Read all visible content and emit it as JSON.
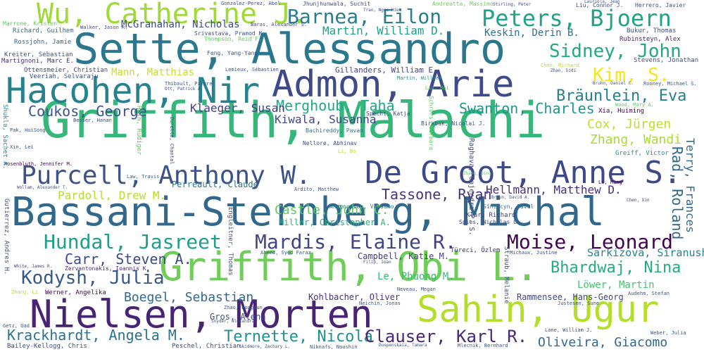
{
  "words": [
    {
      "text": "Griffith, Malachi",
      "color": "#35b779"
    },
    {
      "text": "Bassani-Sternberg, Michal",
      "color": "#31688e"
    },
    {
      "text": "Griffith, Obi L.",
      "color": "#6ece58"
    },
    {
      "text": "Sette, Alessandro",
      "color": "#2a788e"
    },
    {
      "text": "Nielsen, Morten",
      "color": "#482475"
    },
    {
      "text": "Sahin, Ugur",
      "color": "#b5de2b"
    },
    {
      "text": "Hacohen, Nir",
      "color": "#26828e"
    },
    {
      "text": "Admon, Arie",
      "color": "#3e4a89"
    },
    {
      "text": "De Groot, Anne S.",
      "color": "#3e4989"
    },
    {
      "text": "Purcell, Anthony W.",
      "color": "#3b528b"
    },
    {
      "text": "Wu, Catherine J.",
      "color": "#a0da39"
    },
    {
      "text": "Peters, Bjoern",
      "color": "#20a386"
    },
    {
      "text": "Barnea, Eilon",
      "color": "#287d8e"
    },
    {
      "text": "Mardis, Elaine R.",
      "color": "#404387"
    },
    {
      "text": "Hundal, Jasreet",
      "color": "#1f9e89"
    },
    {
      "text": "Moise, Leonard",
      "color": "#440154"
    },
    {
      "text": "Sidney, John",
      "color": "#22a884"
    },
    {
      "text": "Kodysh, Julia",
      "color": "#38598c"
    },
    {
      "text": "Krackhardt, Angela M.",
      "color": "#2c728e"
    },
    {
      "text": "Ternette, Nicola",
      "color": "#21918c"
    },
    {
      "text": "Clauser, Karl R.",
      "color": "#482878"
    },
    {
      "text": "Bhardwaj, Nina",
      "color": "#25ab82"
    },
    {
      "text": "Bräunlein, Eva",
      "color": "#277f8e"
    },
    {
      "text": "Swanton, Charles",
      "color": "#1f968b"
    },
    {
      "text": "Kim, S.",
      "color": "#f4e61e"
    },
    {
      "text": "Coukos, George",
      "color": "#3b528b"
    },
    {
      "text": "Oliveira, Giacomo",
      "color": "#31688e"
    },
    {
      "text": "Carr, Steven A.",
      "color": "#3e4a89"
    },
    {
      "text": "Boegel, Sebastian",
      "color": "#31688e"
    },
    {
      "text": "Tassone, Ryan",
      "color": "#46337e"
    },
    {
      "text": "Hellmann, Matthew D.",
      "color": "#46307e"
    },
    {
      "text": "Sarkizova, Siranush",
      "color": "#26828e"
    },
    {
      "text": "Cox, Jürgen",
      "color": "#c2df23"
    },
    {
      "text": "Zhang, Wandi",
      "color": "#a8db34"
    },
    {
      "text": "Merghoub, Taha",
      "color": "#22a785"
    },
    {
      "text": "Klaeger, Susan",
      "color": "#433e85"
    },
    {
      "text": "Kiwala, Susanna",
      "color": "#3f4788"
    },
    {
      "text": "Pardoll, Drew M.",
      "color": "#b5de2b"
    },
    {
      "text": "Castle, John C.",
      "color": "#5ec962"
    },
    {
      "text": "McGranahan, Nicholas",
      "color": "#3e4989"
    },
    {
      "text": "Martin, William D.",
      "color": "#1fa187"
    },
    {
      "text": "Keskin, Derin B.",
      "color": "#2e6e8e"
    },
    {
      "text": "Mann, Matthias",
      "color": "#c8e020"
    },
    {
      "text": "Gillanders, William E.",
      "color": "#414487"
    },
    {
      "text": "Campbell, Katie M.",
      "color": "#433d84"
    },
    {
      "text": "Le, Phuong M.",
      "color": "#3aba76"
    },
    {
      "text": "Kohlbacher, Oliver",
      "color": "#46317e"
    },
    {
      "text": "Rammensee, Hans-Georg",
      "color": "#3f4889"
    },
    {
      "text": "Löwer, Martin",
      "color": "#4ac16d"
    },
    {
      "text": "Gros, Alena",
      "color": "#3d4d8a"
    },
    {
      "text": "Miller, Christopher A.",
      "color": "#29af7f"
    },
    {
      "text": "Perreault, Claude",
      "color": "#2a788e"
    },
    {
      "text": "Richard, Guilhem",
      "color": "#2f6c8e"
    },
    {
      "text": "Rossjohn, Jamie",
      "color": "#31688e"
    },
    {
      "text": "Marrone, Kristen",
      "color": "#5ec962"
    },
    {
      "text": "Kreiter, Sebastian",
      "color": "#3b528b"
    },
    {
      "text": "Martignoni, Marc E.",
      "color": "#46327e"
    },
    {
      "text": "Ottensmeier, Christian",
      "color": "#3e4a89"
    },
    {
      "text": "Veeriah, Selvaraju",
      "color": "#3b528b"
    },
    {
      "text": "Zervantonakis, Ioannis K.",
      "color": "#482576"
    },
    {
      "text": "Werner, Angelika",
      "color": "#440154"
    },
    {
      "text": "Bailey-Kellogg, Chris",
      "color": "#3b528b"
    },
    {
      "text": "Peschel, Christian",
      "color": "#3e4a89"
    },
    {
      "text": "Anagnostou, Valsamo",
      "color": "#29798e"
    },
    {
      "text": "Türeci, Özlem",
      "color": "#46307e"
    },
    {
      "text": "Klar, Richard",
      "color": "#433e85"
    },
    {
      "text": "Spies, Nicholas C.",
      "color": "#3e4a89"
    },
    {
      "text": "Sinitcyn, Pavel",
      "color": "#2a788e"
    },
    {
      "text": "Xia, Huiming",
      "color": "#440154"
    },
    {
      "text": "Greiff, Victor",
      "color": "#21918c"
    },
    {
      "text": "Bukur, Thomas",
      "color": "#3b528b"
    },
    {
      "text": "Rubinsteyn, Alex",
      "color": "#482173"
    },
    {
      "text": "Stevens, Jonathan",
      "color": "#3b528b"
    },
    {
      "text": "Srivastava, Pramod K.",
      "color": "#3b528b"
    },
    {
      "text": "Walker, Jason R.",
      "color": "#3e4989"
    },
    {
      "text": "Feng, Yang-Yang",
      "color": "#3b528b"
    },
    {
      "text": "Thompson, Reid F.",
      "color": "#5ec962"
    },
    {
      "text": "Gonzalez-Perez, Abel",
      "color": "#3e4989"
    },
    {
      "text": "Jhunjhunwala, Suchit",
      "color": "#3e4989"
    },
    {
      "text": "Andreatta, Massimo",
      "color": "#6ece58"
    },
    {
      "text": "Liu, Connor J.",
      "color": "#3e4989"
    },
    {
      "text": "Herrero, Javier",
      "color": "#3e4989"
    },
    {
      "text": "Baras, Alexander S.",
      "color": "#3e4989"
    },
    {
      "text": "Lemieux, Sébastien",
      "color": "#3b528b"
    },
    {
      "text": "Thibault, Pierre",
      "color": "#3b528b"
    },
    {
      "text": "Ott, Patrick A.",
      "color": "#3e4a89"
    },
    {
      "text": "Martin, William",
      "color": "#21918c"
    },
    {
      "text": "Liu, Rui",
      "color": "#5ec962"
    },
    {
      "text": "Chen, Richard",
      "color": "#b5de2b"
    },
    {
      "text": "Zhao, Sidi",
      "color": "#3e4a89"
    },
    {
      "text": "Rooney, Michael S.",
      "color": "#3b528b"
    },
    {
      "text": "Bruhn, Daniel C.",
      "color": "#3b528b"
    },
    {
      "text": "Wood, Mary A.",
      "color": "#5ec962"
    },
    {
      "text": "Besser, Hanan",
      "color": "#3e4989"
    },
    {
      "text": "Pak, HuiSong",
      "color": "#3b528b"
    },
    {
      "text": "Xin, Lei",
      "color": "#3b528b"
    },
    {
      "text": "Rosenbluth, Jennifer M.",
      "color": "#440154"
    },
    {
      "text": "Wollam, Alexander T.",
      "color": "#3b528b"
    },
    {
      "text": "Law, Travis",
      "color": "#31688e"
    },
    {
      "text": "Ardito, Matthew",
      "color": "#3b528b"
    },
    {
      "text": "Nellore, Abhinav",
      "color": "#3e4989"
    },
    {
      "text": "Bachireddy, Pavan",
      "color": "#2c728e"
    },
    {
      "text": "Birkbak, Nicolai J.",
      "color": "#3b528b"
    },
    {
      "text": "Specht, Katja",
      "color": "#3e4989"
    },
    {
      "text": "Zhang, Bing",
      "color": "#5ec962"
    },
    {
      "text": "Li, Bo",
      "color": "#b5de2b"
    },
    {
      "text": "Li, Ming",
      "color": "#440154"
    },
    {
      "text": "Braun, David A.",
      "color": "#3b528b"
    },
    {
      "text": "Chen, Xin",
      "color": "#3e4989"
    },
    {
      "text": "Ahmed, Syed Faraz",
      "color": "#3b528b"
    },
    {
      "text": "Filip, Ioan",
      "color": "#3b528b"
    },
    {
      "text": "Michaux, Justine",
      "color": "#3e4989"
    },
    {
      "text": "Neveau, Megan",
      "color": "#3b528b"
    },
    {
      "text": "Neichin, Jonas",
      "color": "#3b528b"
    },
    {
      "text": "Justesen, Sune",
      "color": "#3b528b"
    },
    {
      "text": "Audehm, Stefan",
      "color": "#3b528b"
    },
    {
      "text": "Lane, William J.",
      "color": "#3b528b"
    },
    {
      "text": "Weber, Julia",
      "color": "#3b528b"
    },
    {
      "text": "Snyder, Alexandra",
      "color": "#3b528b"
    },
    {
      "text": "Zhao, Hongyun",
      "color": "#3b528b"
    },
    {
      "text": "Mlecnik, Bernhard",
      "color": "#3b528b"
    },
    {
      "text": "Duspenskaia, Tamara",
      "color": "#3b528b"
    },
    {
      "text": "Niknafs, Noushin",
      "color": "#3b528b"
    },
    {
      "text": "Skidmore, Zachary L.",
      "color": "#3b528b"
    },
    {
      "text": "Getz, Gad",
      "color": "#3b528b"
    },
    {
      "text": "Zhang, Li",
      "color": "#b5de2b"
    },
    {
      "text": "White, James R.",
      "color": "#3e4989"
    },
    {
      "text": "Gutierrez, Andres H.",
      "color": "#3b528b"
    },
    {
      "text": "Shukla, Sachet A.",
      "color": "#21918c"
    },
    {
      "text": "Rad, Roland",
      "color": "#31688e"
    },
    {
      "text": "Terry, Frances",
      "color": "#31688e"
    },
    {
      "text": "Engleitner, Thomas",
      "color": "#3b528b"
    },
    {
      "text": "Raghava, Gajendra P. S.",
      "color": "#3e4989"
    },
    {
      "text": "Schrörs, Barbara",
      "color": "#5ec962"
    },
    {
      "text": "Hein, Rüdiger",
      "color": "#5ec962"
    },
    {
      "text": "Durette, Chantal",
      "color": "#3e4989"
    },
    {
      "text": "Straub, Melanie",
      "color": "#3b528b"
    },
    {
      "text": "Wen, Bo",
      "color": "#3e4989"
    },
    {
      "text": "Karchin, Rachel",
      "color": "#3b528b"
    },
    {
      "text": "Tran, Ngoc Hieu",
      "color": "#3e4989"
    },
    {
      "text": "Stirling, Peter",
      "color": "#3e4989"
    },
    {
      "text": "Lauriola, Jean",
      "color": "#3b528b"
    }
  ]
}
